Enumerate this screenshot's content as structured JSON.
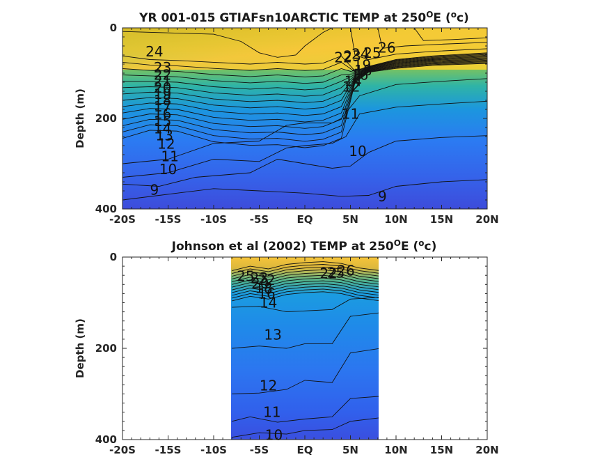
{
  "chart_data": [
    {
      "type": "heatmap",
      "title_main": "YR 001-015 GTIAFsn10ARCTIC TEMP at 250",
      "title_sup": "O",
      "title_unit_open": "E (",
      "title_unit_sup": "o",
      "title_unit_close": "c)",
      "ylabel": "Depth (m)",
      "xlim_deg": [
        -20,
        20
      ],
      "ylim_m": [
        0,
        400
      ],
      "x_ticks": [
        -20,
        -15,
        -10,
        -5,
        0,
        5,
        10,
        15,
        20
      ],
      "x_tick_labels": [
        "-20S",
        "-15S",
        "-10S",
        "-5S",
        "EQ",
        "5N",
        "10N",
        "15N",
        "20N"
      ],
      "y_ticks": [
        0,
        200,
        400
      ],
      "y_tick_labels": [
        "0",
        "200",
        "400"
      ],
      "data_extent_deg": [
        -20,
        20
      ],
      "colormap": [
        "#3e26a8",
        "#2d5ff5",
        "#1e97e0",
        "#2ab7a5",
        "#7fc25a",
        "#d4bb28",
        "#fbd22c",
        "#f5e11e"
      ],
      "color_range_c": [
        8,
        28
      ],
      "grid": false,
      "isotherm_labels": [
        {
          "t": "24",
          "lon": -16.5,
          "depth": 52
        },
        {
          "t": "23",
          "lon": -15.6,
          "depth": 88
        },
        {
          "t": "22",
          "lon": -15.6,
          "depth": 104
        },
        {
          "t": "21",
          "lon": -15.6,
          "depth": 118
        },
        {
          "t": "20",
          "lon": -15.6,
          "depth": 132
        },
        {
          "t": "19",
          "lon": -15.6,
          "depth": 146
        },
        {
          "t": "18",
          "lon": -15.6,
          "depth": 160
        },
        {
          "t": "17",
          "lon": -15.6,
          "depth": 174
        },
        {
          "t": "16",
          "lon": -15.6,
          "depth": 190
        },
        {
          "t": "15",
          "lon": -15.6,
          "depth": 206
        },
        {
          "t": "14",
          "lon": -15.6,
          "depth": 222
        },
        {
          "t": "13",
          "lon": -15.4,
          "depth": 238
        },
        {
          "t": "12",
          "lon": -15.2,
          "depth": 256
        },
        {
          "t": "11",
          "lon": -14.8,
          "depth": 284
        },
        {
          "t": "10",
          "lon": -15.0,
          "depth": 312
        },
        {
          "t": "9",
          "lon": -16.5,
          "depth": 358
        },
        {
          "t": "22",
          "lon": 4.2,
          "depth": 65
        },
        {
          "t": "23",
          "lon": 5.2,
          "depth": 62
        },
        {
          "t": "24",
          "lon": 6.1,
          "depth": 58
        },
        {
          "t": "25",
          "lon": 7.4,
          "depth": 55
        },
        {
          "t": "26",
          "lon": 9.0,
          "depth": 44
        },
        {
          "t": "19",
          "lon": 6.3,
          "depth": 82
        },
        {
          "t": "18",
          "lon": 6.4,
          "depth": 94
        },
        {
          "t": "16",
          "lon": 6.0,
          "depth": 104
        },
        {
          "t": "14",
          "lon": 5.3,
          "depth": 118
        },
        {
          "t": "12",
          "lon": 5.1,
          "depth": 130
        },
        {
          "t": "11",
          "lon": 5.0,
          "depth": 190
        },
        {
          "t": "10",
          "lon": 5.8,
          "depth": 272
        },
        {
          "t": "9",
          "lon": 8.5,
          "depth": 372
        }
      ]
    },
    {
      "type": "heatmap",
      "title_main": "Johnson et al (2002) TEMP at 250",
      "title_sup": "O",
      "title_unit_open": "E (",
      "title_unit_sup": "o",
      "title_unit_close": "c)",
      "ylabel": "Depth (m)",
      "xlim_deg": [
        -20,
        20
      ],
      "ylim_m": [
        0,
        400
      ],
      "x_ticks": [
        -20,
        -15,
        -10,
        -5,
        0,
        5,
        10,
        15,
        20
      ],
      "x_tick_labels": [
        "-20S",
        "-15S",
        "-10S",
        "-5S",
        "EQ",
        "5N",
        "10N",
        "15N",
        "20N"
      ],
      "y_ticks": [
        0,
        200,
        400
      ],
      "y_tick_labels": [
        "0",
        "200",
        "400"
      ],
      "data_extent_deg": [
        -8,
        8.3
      ],
      "colormap": [
        "#3e26a8",
        "#2d5ff5",
        "#1e97e0",
        "#2ab7a5",
        "#7fc25a",
        "#d4bb28",
        "#fbd22c",
        "#f5e11e"
      ],
      "color_range_c": [
        8,
        28
      ],
      "grid": false,
      "isotherm_labels": [
        {
          "t": "25",
          "lon": -6.5,
          "depth": 42
        },
        {
          "t": "23",
          "lon": -5.0,
          "depth": 46
        },
        {
          "t": "22",
          "lon": -4.2,
          "depth": 50
        },
        {
          "t": "20",
          "lon": -4.9,
          "depth": 58
        },
        {
          "t": "18",
          "lon": -4.5,
          "depth": 68
        },
        {
          "t": "16",
          "lon": -4.2,
          "depth": 80
        },
        {
          "t": "14",
          "lon": -4.0,
          "depth": 100
        },
        {
          "t": "13",
          "lon": -3.5,
          "depth": 170
        },
        {
          "t": "12",
          "lon": -4.0,
          "depth": 282
        },
        {
          "t": "11",
          "lon": -3.6,
          "depth": 340
        },
        {
          "t": "10",
          "lon": -3.4,
          "depth": 390
        },
        {
          "t": "22",
          "lon": 2.6,
          "depth": 36
        },
        {
          "t": "25",
          "lon": 3.4,
          "depth": 34
        },
        {
          "t": "26",
          "lon": 4.5,
          "depth": 30
        }
      ]
    }
  ]
}
